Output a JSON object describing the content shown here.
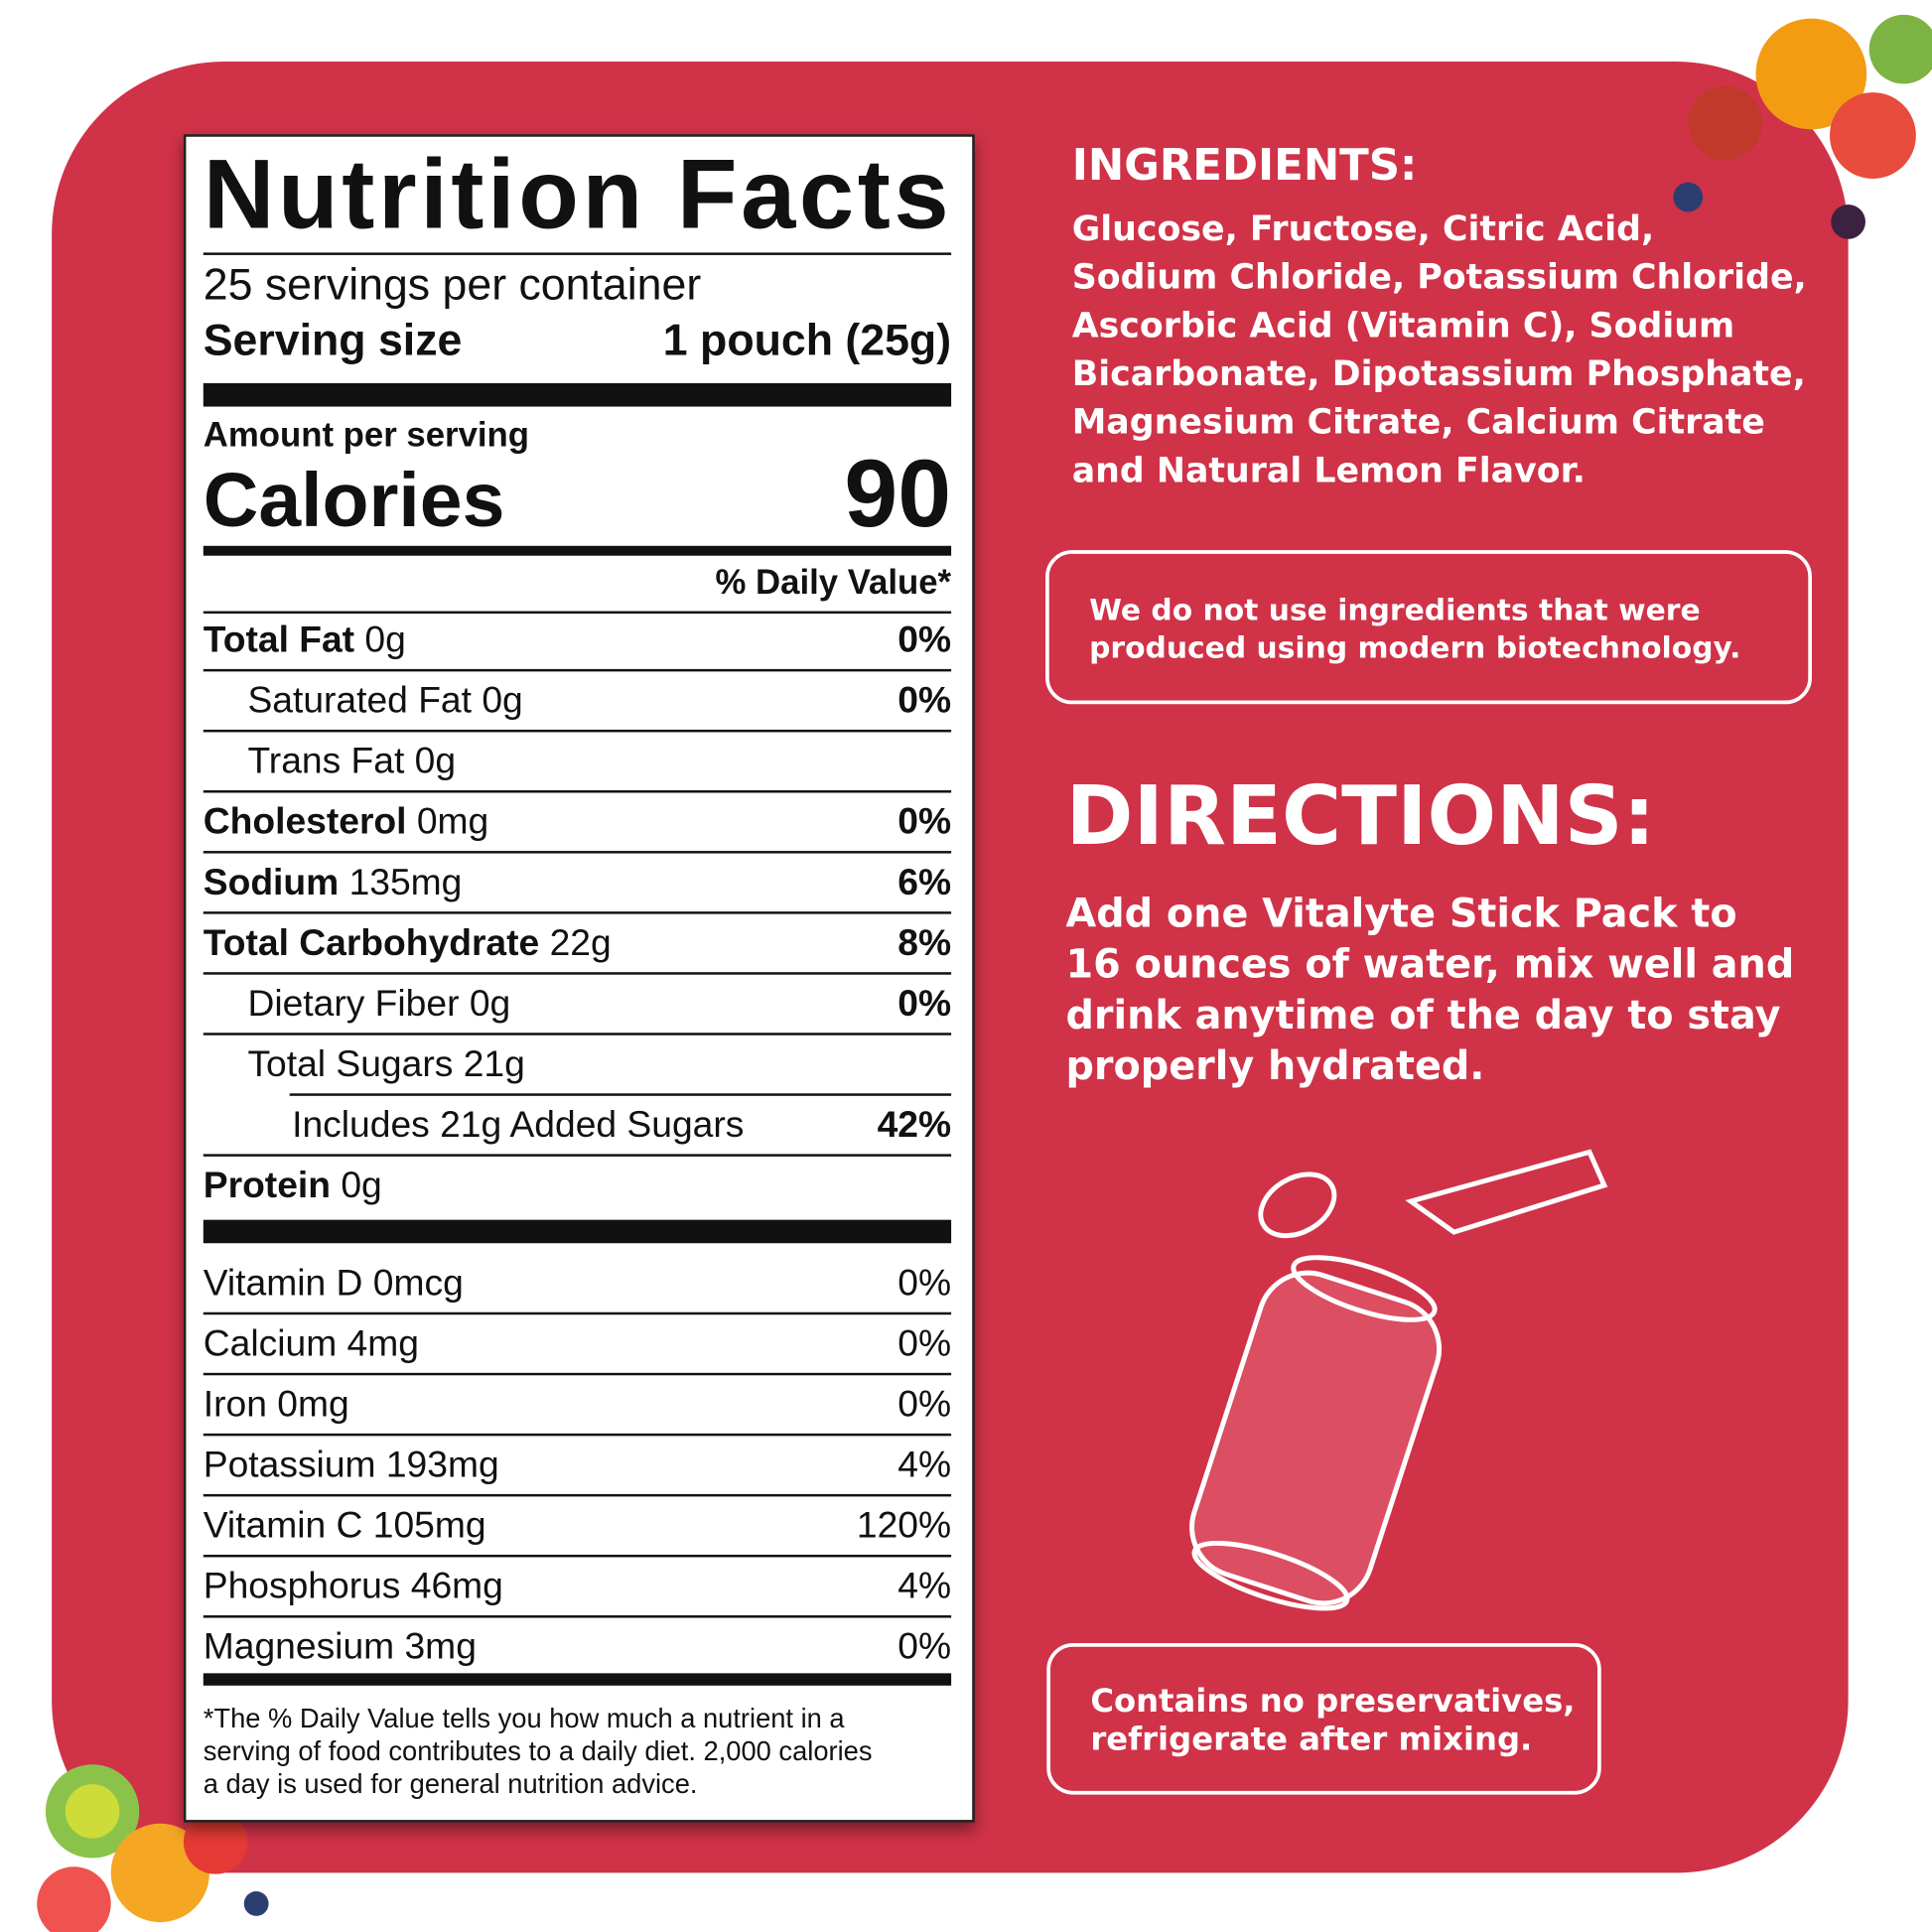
{
  "nutrition": {
    "title": "Nutrition Facts",
    "servings": "25 servings per container",
    "serving_size_label": "Serving size",
    "serving_size": "1 pouch (25g)",
    "amount_per_serving": "Amount per serving",
    "calories_label": "Calories",
    "calories": 90,
    "dv_header": "% Daily Value*",
    "rows": [
      {
        "name": "Total Fat",
        "amount": "0g",
        "dv": "0%"
      },
      {
        "name": "Saturated Fat",
        "amount": "0g",
        "dv": "0%"
      },
      {
        "name": "Trans Fat",
        "amount": "0g"
      },
      {
        "name": "Cholesterol",
        "amount": "0mg",
        "dv": "0%"
      },
      {
        "name": "Sodium",
        "amount": "135mg",
        "dv": "6%"
      },
      {
        "name": "Total Carbohydrate",
        "amount": "22g",
        "dv": "8%"
      },
      {
        "name": "Dietary Fiber",
        "amount": "0g",
        "dv": "0%"
      },
      {
        "name": "Total Sugars",
        "amount": "21g"
      },
      {
        "name": "Includes 21g Added Sugars",
        "dv": "42%"
      },
      {
        "name": "Protein",
        "amount": "0g"
      }
    ],
    "vitamins": [
      {
        "name": "Vitamin D 0mcg",
        "dv": "0%"
      },
      {
        "name": "Calcium 4mg",
        "dv": "0%"
      },
      {
        "name": "Iron 0mg",
        "dv": "0%"
      },
      {
        "name": "Potassium 193mg",
        "dv": "4%"
      },
      {
        "name": "Vitamin C 105mg",
        "dv": "120%"
      },
      {
        "name": "Phosphorus 46mg",
        "dv": "4%"
      },
      {
        "name": "Magnesium 3mg",
        "dv": "0%"
      }
    ],
    "footnote": [
      "*The % Daily Value tells you how much a nutrient in a",
      "serving of food contributes to a daily diet. 2,000 calories",
      "a day is used for general nutrition advice."
    ]
  },
  "ingredients": {
    "title": "INGREDIENTS:",
    "lines": [
      "Glucose, Fructose, Citric Acid,",
      "Sodium Chloride, Potassium Chloride,",
      "Ascorbic Acid (Vitamin C), Sodium",
      "Bicarbonate, Dipotassium Phosphate,",
      "Magnesium Citrate, Calcium Citrate",
      "and Natural Lemon Flavor."
    ]
  },
  "biotech_note": [
    "We do not use ingredients that were",
    "produced using modern biotechnology."
  ],
  "directions": {
    "title": "DIRECTIONS:",
    "lines": [
      "Add one Vitalyte Stick Pack to",
      "16 ounces of water, mix well and",
      "drink anytime of the day to stay",
      "properly hydrated."
    ]
  },
  "storage_note": [
    "Contains no preservatives,",
    "refrigerate after mixing."
  ]
}
